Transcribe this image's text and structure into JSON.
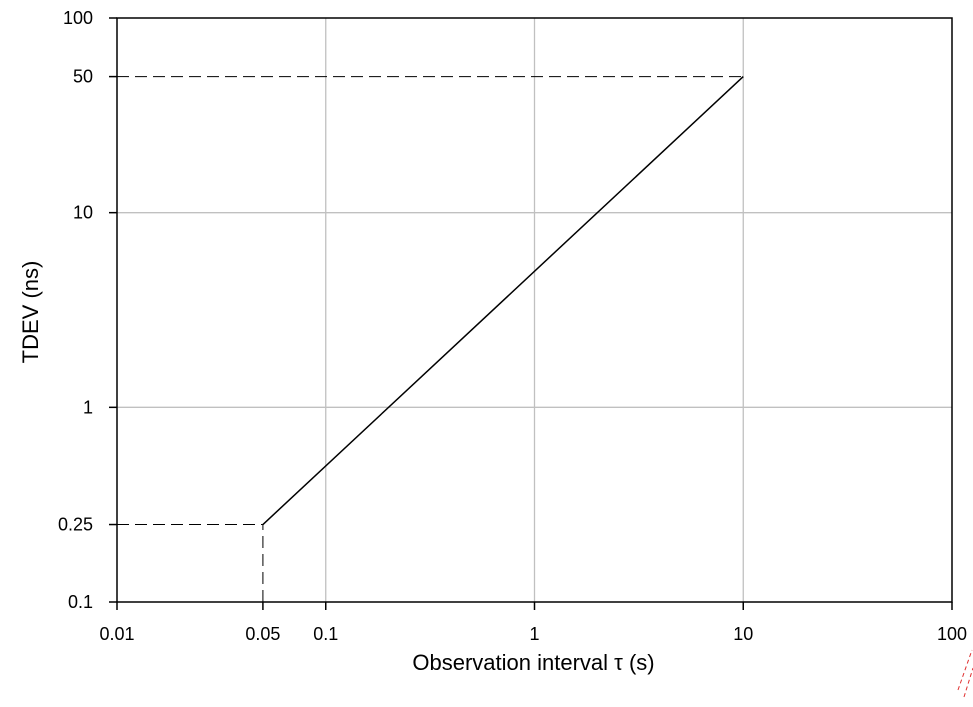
{
  "chart_data": {
    "type": "line",
    "title": "",
    "xlabel": "Observation interval τ (s)",
    "ylabel": "TDEV (ns)",
    "xscale": "log",
    "yscale": "log",
    "xlim": [
      0.01,
      100
    ],
    "ylim": [
      0.1,
      100
    ],
    "grid": true,
    "x_ticks": [
      0.01,
      0.05,
      0.1,
      1,
      10,
      100
    ],
    "x_tick_labels": [
      "0.01",
      "0.05",
      "0.1",
      "1",
      "10",
      "100"
    ],
    "y_ticks": [
      0.1,
      0.25,
      1,
      10,
      50,
      100
    ],
    "y_tick_labels": [
      "0.1",
      "0.25",
      "1",
      "10",
      "50",
      "100"
    ],
    "x_grid": [
      0.1,
      1,
      10
    ],
    "y_grid": [
      1,
      10
    ],
    "series": [
      {
        "x": [
          0.05,
          10
        ],
        "y": [
          0.25,
          50
        ],
        "style": "solid",
        "color": "#000000"
      }
    ],
    "reference_lines": [
      {
        "x": [
          0.01,
          10
        ],
        "y": [
          50,
          50
        ],
        "style": "dashed"
      },
      {
        "x": [
          0.01,
          0.05
        ],
        "y": [
          0.25,
          0.25
        ],
        "style": "dashed"
      },
      {
        "x": [
          0.05,
          0.05
        ],
        "y": [
          0.1,
          0.25
        ],
        "style": "dashed"
      }
    ],
    "colors": {
      "axis": "#000000",
      "grid": "#c0c0c0",
      "line": "#000000"
    }
  }
}
